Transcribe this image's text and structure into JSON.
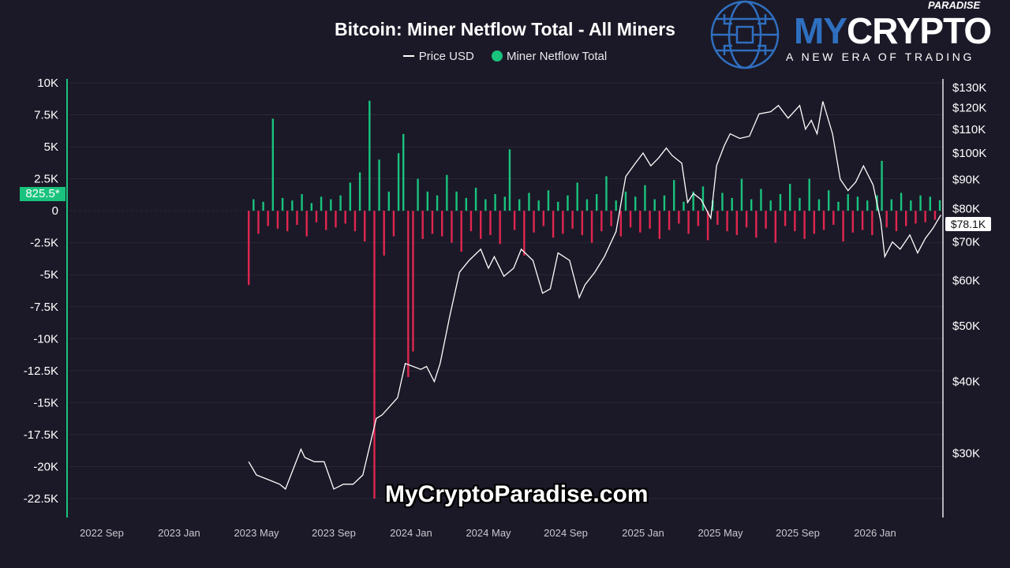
{
  "chart_data": {
    "type": "bar+line",
    "title": "Bitcoin: Miner Netflow Total - All Miners",
    "legend": [
      {
        "name": "Price USD",
        "color": "#ffffff",
        "marker": "line"
      },
      {
        "name": "Miner Netflow Total",
        "color": "#19c37d",
        "marker": "dot"
      }
    ],
    "legend_placement": "top-center",
    "x_ticks": [
      "2022 Sep",
      "2023 Jan",
      "2023 May",
      "2023 Sep",
      "2024 Jan",
      "2024 May",
      "2024 Sep",
      "2025 Jan",
      "2025 May",
      "2025 Sep",
      "2026 Jan"
    ],
    "x_unit": "months since 2022 Sep",
    "left_axis": {
      "label": "Miner Netflow Total",
      "ticks": [
        "10K",
        "7.5K",
        "5K",
        "2.5K",
        "0",
        "-2.5K",
        "-5K",
        "-7.5K",
        "-10K",
        "-12.5K",
        "-15K",
        "-17.5K",
        "-20K",
        "-22.5K"
      ],
      "range": [
        -22500,
        10000
      ]
    },
    "right_axis": {
      "label": "Price USD",
      "scale": "log",
      "ticks": [
        "$130K",
        "$120K",
        "$110K",
        "$100K",
        "$90K",
        "$80K",
        "$70K",
        "$60K",
        "$50K",
        "$40K",
        "$30K"
      ],
      "tick_values": [
        130,
        120,
        110,
        100,
        90,
        80,
        70,
        60,
        50,
        40,
        30
      ],
      "range_k": [
        30,
        130
      ]
    },
    "current_netflow_label": "825.5*",
    "current_price_label": "$78.1K",
    "colors": {
      "positive": "#19c37d",
      "negative": "#e0264f",
      "price": "#ffffff",
      "left_axis_line": "#19c37d"
    },
    "netflow": {
      "start_month": 7.6,
      "step_month": 0.25,
      "values": [
        -5800,
        900,
        -1800,
        700,
        -1200,
        7200,
        -1400,
        1000,
        -1600,
        800,
        -1100,
        1300,
        -2000,
        600,
        -900,
        1100,
        -1500,
        900,
        -1300,
        1200,
        -1000,
        2200,
        -1600,
        3000,
        -2400,
        8600,
        -22500,
        4000,
        -3500,
        1500,
        -2000,
        4500,
        6000,
        -13000,
        -11000,
        2500,
        -2200,
        1500,
        -1800,
        1200,
        -2000,
        2800,
        -2500,
        1500,
        -3200,
        1000,
        -1600,
        1800,
        -2200,
        900,
        -1900,
        1300,
        -2600,
        1100,
        4800,
        -1500,
        900,
        -3500,
        1400,
        -1700,
        800,
        -1200,
        1600,
        -2100,
        700,
        -1800,
        1200,
        -1400,
        2200,
        -1900,
        900,
        -2500,
        1300,
        -1600,
        2700,
        -1200,
        800,
        -2000,
        1500,
        -1300,
        1100,
        -1700,
        2000,
        -1400,
        900,
        -2200,
        1200,
        -1500,
        2400,
        -1000,
        700,
        -1800,
        1500,
        -1200,
        1900,
        -2300,
        800,
        -1100,
        1400,
        -1600,
        1000,
        -1900,
        2500,
        -1300,
        900,
        -2100,
        1700,
        -1400,
        800,
        -2500,
        1300,
        -1200,
        2100,
        -1600,
        1000,
        -2200,
        2500,
        -1800,
        900,
        -1500,
        1600,
        -1100,
        700,
        -2400,
        1300,
        -1700,
        1100,
        -1500,
        800,
        -1900,
        1200,
        3900,
        -1300,
        900,
        -1600,
        1400,
        -1200,
        800,
        -1000,
        1200,
        -900,
        1100,
        -700,
        826
      ]
    },
    "price_k": [
      [
        7.6,
        29
      ],
      [
        8,
        27.5
      ],
      [
        8.6,
        27
      ],
      [
        9.2,
        26.5
      ],
      [
        9.5,
        26
      ],
      [
        10.3,
        30.5
      ],
      [
        10.5,
        29.5
      ],
      [
        11,
        29
      ],
      [
        11.5,
        29
      ],
      [
        12,
        26
      ],
      [
        12.5,
        26.5
      ],
      [
        13,
        26.5
      ],
      [
        13.5,
        27.5
      ],
      [
        14.2,
        34.5
      ],
      [
        14.5,
        35
      ],
      [
        15.3,
        37.5
      ],
      [
        15.7,
        43
      ],
      [
        16.5,
        42
      ],
      [
        16.8,
        42.5
      ],
      [
        17.2,
        40
      ],
      [
        17.5,
        43
      ],
      [
        18,
        52
      ],
      [
        18.5,
        62
      ],
      [
        19,
        65
      ],
      [
        19.6,
        68
      ],
      [
        20,
        63
      ],
      [
        20.3,
        66
      ],
      [
        20.8,
        61
      ],
      [
        21.3,
        63
      ],
      [
        21.7,
        68
      ],
      [
        22.3,
        65
      ],
      [
        22.8,
        57
      ],
      [
        23.2,
        58
      ],
      [
        23.6,
        67
      ],
      [
        24.2,
        65
      ],
      [
        24.7,
        56
      ],
      [
        25,
        59
      ],
      [
        25.5,
        62
      ],
      [
        26,
        66
      ],
      [
        26.6,
        73
      ],
      [
        27.1,
        91
      ],
      [
        27.6,
        96
      ],
      [
        28,
        100
      ],
      [
        28.4,
        95
      ],
      [
        28.8,
        98
      ],
      [
        29.2,
        102
      ],
      [
        29.5,
        99
      ],
      [
        30,
        96
      ],
      [
        30.3,
        82
      ],
      [
        30.6,
        85
      ],
      [
        31,
        83
      ],
      [
        31.5,
        77
      ],
      [
        31.8,
        95
      ],
      [
        32.2,
        103
      ],
      [
        32.5,
        108
      ],
      [
        33,
        106
      ],
      [
        33.5,
        107
      ],
      [
        34,
        117
      ],
      [
        34.6,
        118
      ],
      [
        35,
        121
      ],
      [
        35.5,
        115
      ],
      [
        36.1,
        121
      ],
      [
        36.4,
        110
      ],
      [
        36.7,
        114
      ],
      [
        37,
        108
      ],
      [
        37.3,
        123
      ],
      [
        37.8,
        108
      ],
      [
        38.2,
        90
      ],
      [
        38.6,
        86
      ],
      [
        39,
        89
      ],
      [
        39.4,
        95
      ],
      [
        39.9,
        88
      ],
      [
        40.3,
        76
      ],
      [
        40.5,
        66
      ],
      [
        40.9,
        70
      ],
      [
        41.3,
        68
      ],
      [
        41.8,
        72
      ],
      [
        42.2,
        67
      ],
      [
        42.6,
        71
      ],
      [
        43,
        74
      ],
      [
        43.4,
        78
      ]
    ]
  },
  "logo": {
    "brand_a": "MY",
    "brand_b": "CRYPTO",
    "sub": "PARADISE",
    "tagline": "A NEW ERA OF TRADING"
  },
  "watermark": "MyCryptoParadise.com"
}
